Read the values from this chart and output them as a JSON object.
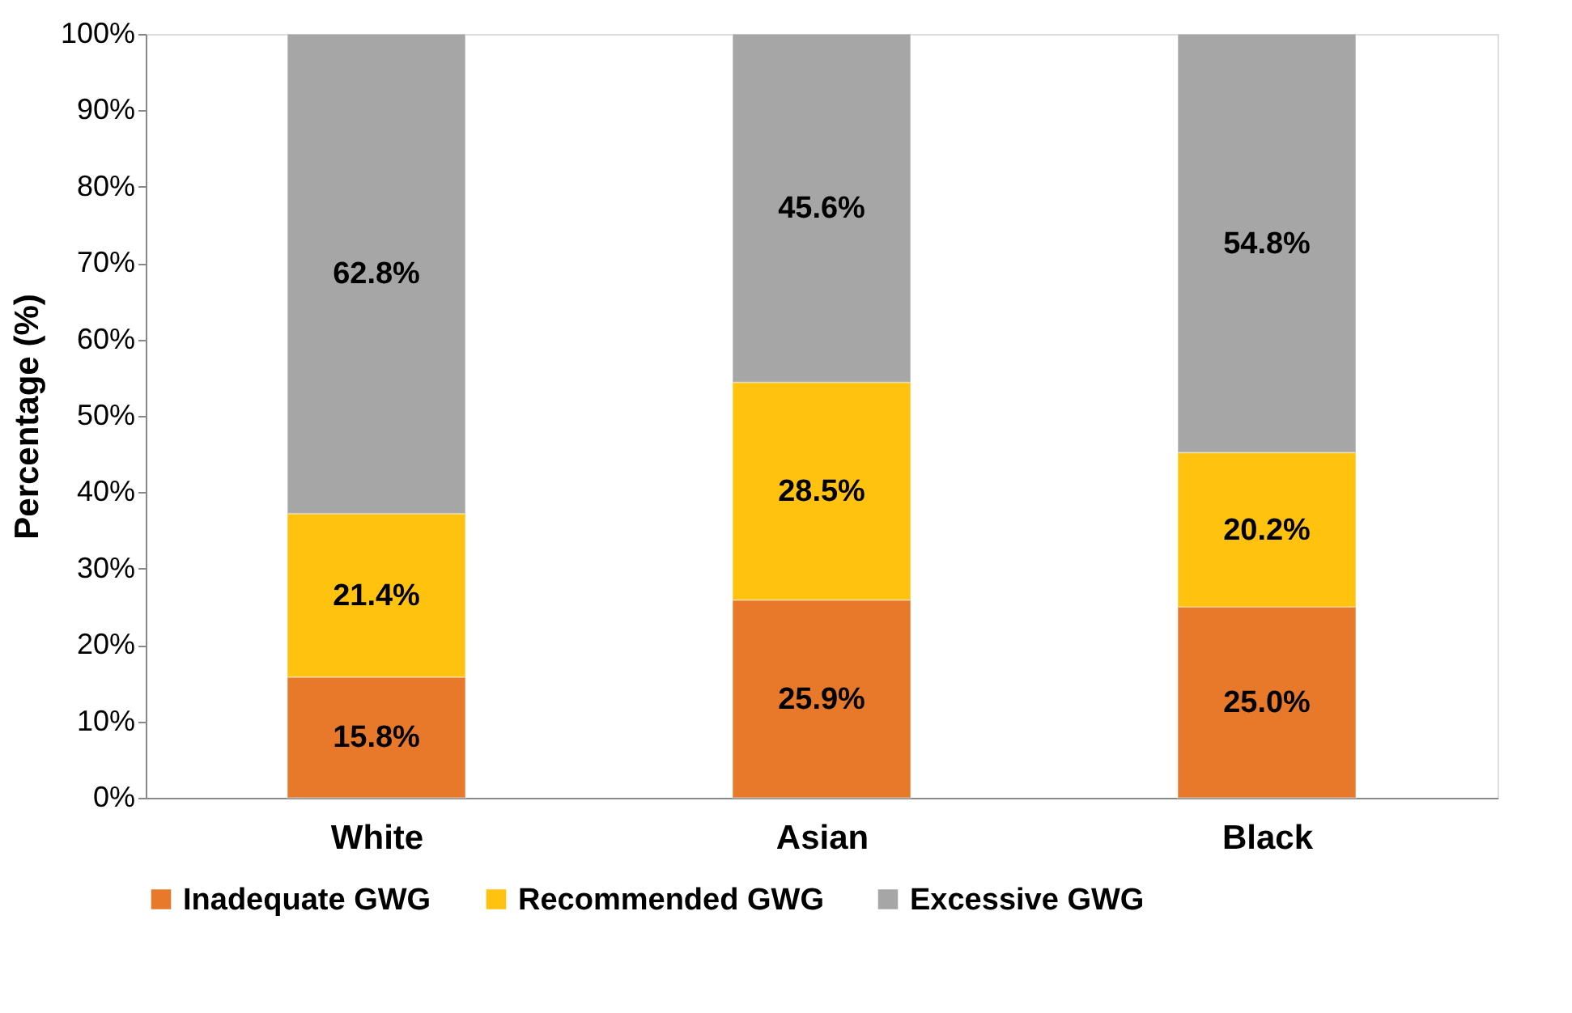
{
  "chart_data": {
    "type": "bar",
    "stacked": true,
    "ylabel": "Percentage (%)",
    "categories": [
      "White",
      "Asian",
      "Black"
    ],
    "series": [
      {
        "name": "Inadequate GWG",
        "color": "#e8782a",
        "values": [
          15.8,
          25.9,
          25.0
        ],
        "value_labels": [
          "15.8%",
          "25.9%",
          "25.0%"
        ]
      },
      {
        "name": "Recommended GWG",
        "color": "#ffc20e",
        "values": [
          21.4,
          28.5,
          20.2
        ],
        "value_labels": [
          "21.4%",
          "28.5%",
          "20.2%"
        ]
      },
      {
        "name": "Excessive GWG",
        "color": "#a6a6a6",
        "values": [
          62.8,
          45.6,
          54.8
        ],
        "value_labels": [
          "62.8%",
          "45.6%",
          "54.8%"
        ]
      }
    ],
    "ylim": [
      0,
      100
    ],
    "yticks": [
      {
        "value": 0,
        "label": "0%"
      },
      {
        "value": 10,
        "label": "10%"
      },
      {
        "value": 20,
        "label": "20%"
      },
      {
        "value": 30,
        "label": "30%"
      },
      {
        "value": 40,
        "label": "40%"
      },
      {
        "value": 50,
        "label": "50%"
      },
      {
        "value": 60,
        "label": "60%"
      },
      {
        "value": 70,
        "label": "70%"
      },
      {
        "value": 80,
        "label": "80%"
      },
      {
        "value": 90,
        "label": "90%"
      },
      {
        "value": 100,
        "label": "100%"
      }
    ],
    "grid": false,
    "legend": "bottom"
  }
}
